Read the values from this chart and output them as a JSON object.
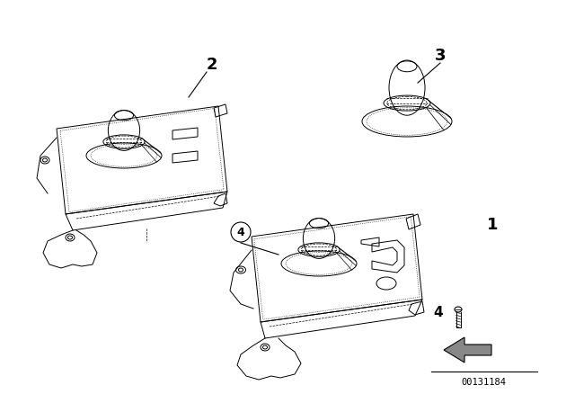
{
  "background_color": "#ffffff",
  "text_color": "#000000",
  "figsize": [
    6.4,
    4.48
  ],
  "dpi": 100,
  "diagram_number": "00131184",
  "lw": 0.7
}
